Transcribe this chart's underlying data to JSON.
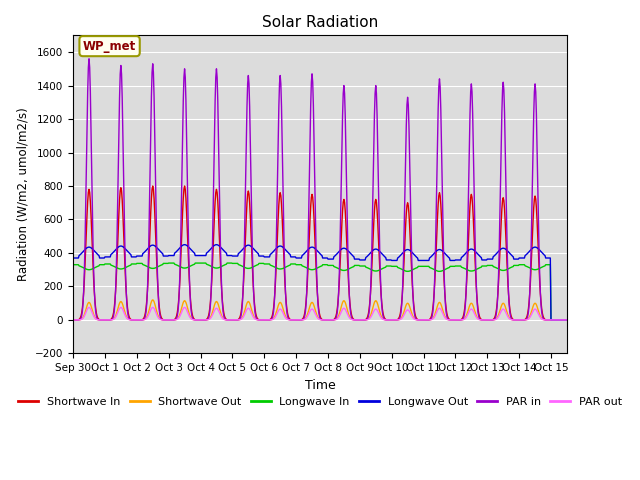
{
  "title": "Solar Radiation",
  "xlabel": "Time",
  "ylabel": "Radiation (W/m2, umol/m2/s)",
  "ylim": [
    -200,
    1700
  ],
  "xlim": [
    0,
    15.5
  ],
  "annotation_text": "WP_met",
  "annotation_color": "#8B0000",
  "annotation_bg": "#FFFFF0",
  "annotation_edge": "#999900",
  "plot_bg": "#DCDCDC",
  "grid_color": "white",
  "series": {
    "shortwave_in": {
      "color": "#DD0000",
      "label": "Shortwave In",
      "lw": 1.0
    },
    "shortwave_out": {
      "color": "#FFA500",
      "label": "Shortwave Out",
      "lw": 1.0
    },
    "longwave_in": {
      "color": "#00CC00",
      "label": "Longwave In",
      "lw": 1.0
    },
    "longwave_out": {
      "color": "#0000DD",
      "label": "Longwave Out",
      "lw": 1.0
    },
    "par_in": {
      "color": "#9900CC",
      "label": "PAR in",
      "lw": 1.0
    },
    "par_out": {
      "color": "#FF66FF",
      "label": "PAR out",
      "lw": 1.0
    }
  },
  "sw_peaks": [
    780,
    790,
    800,
    800,
    780,
    770,
    760,
    750,
    720,
    720,
    700,
    760,
    750,
    730,
    740
  ],
  "par_in_peaks": [
    1560,
    1520,
    1530,
    1500,
    1500,
    1460,
    1460,
    1470,
    1400,
    1400,
    1330,
    1440,
    1410,
    1420,
    1410
  ],
  "sw_out_peaks": [
    105,
    110,
    120,
    115,
    110,
    110,
    105,
    105,
    115,
    115,
    100,
    105,
    100,
    100,
    100
  ],
  "par_out_peaks": [
    75,
    75,
    75,
    75,
    70,
    70,
    65,
    65,
    70,
    65,
    60,
    70,
    65,
    65,
    65
  ],
  "lw_in_base": 330,
  "lw_out_base": 370,
  "x_tick_labels": [
    "Sep 30",
    "Oct 1",
    "Oct 2",
    "Oct 3",
    "Oct 4",
    "Oct 5",
    "Oct 6",
    "Oct 7",
    "Oct 8",
    "Oct 9",
    "Oct 10",
    "Oct 11",
    "Oct 12",
    "Oct 13",
    "Oct 14",
    "Oct 15"
  ],
  "x_tick_positions": [
    0,
    1,
    2,
    3,
    4,
    5,
    6,
    7,
    8,
    9,
    10,
    11,
    12,
    13,
    14,
    15
  ],
  "yticks": [
    -200,
    0,
    200,
    400,
    600,
    800,
    1000,
    1200,
    1400,
    1600
  ],
  "figsize": [
    6.4,
    4.8
  ],
  "dpi": 100
}
